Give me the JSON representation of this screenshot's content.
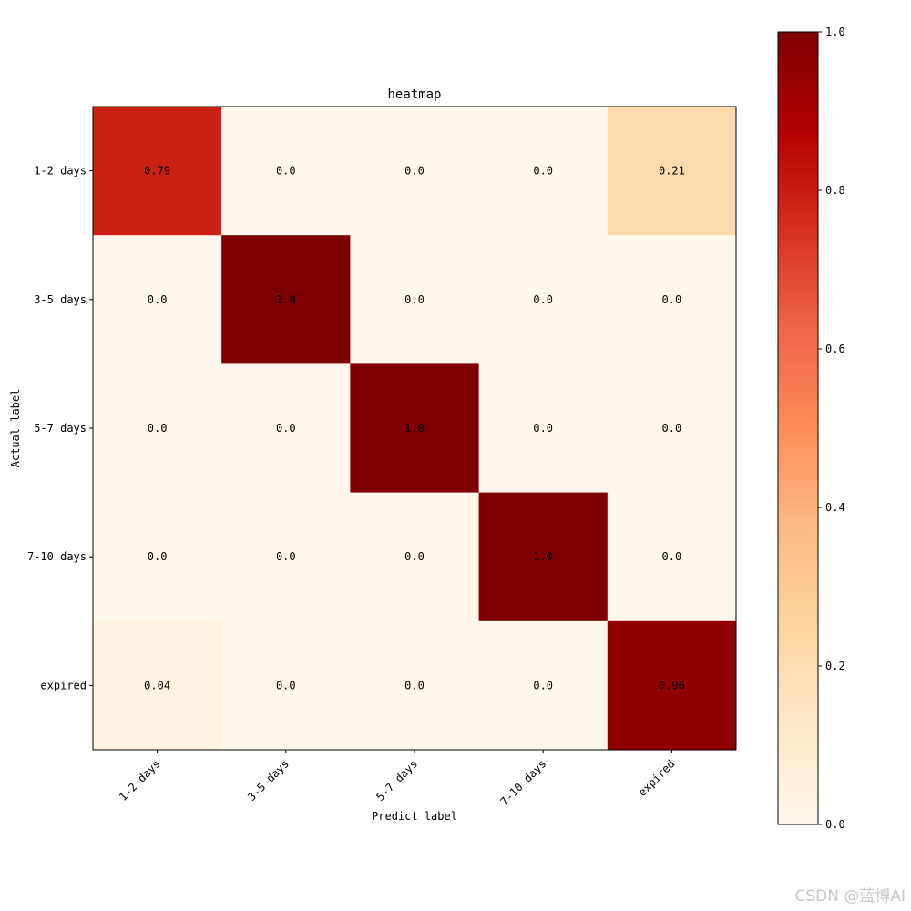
{
  "chart_data": {
    "type": "heatmap",
    "title": "heatmap",
    "xlabel": "Predict label",
    "ylabel": "Actual label",
    "x_categories": [
      "1-2 days",
      "3-5 days",
      "5-7 days",
      "7-10 days",
      "expired"
    ],
    "y_categories": [
      "1-2 days",
      "3-5 days",
      "5-7 days",
      "7-10 days",
      "expired"
    ],
    "values": [
      [
        0.79,
        0.0,
        0.0,
        0.0,
        0.21
      ],
      [
        0.0,
        1.0,
        0.0,
        0.0,
        0.0
      ],
      [
        0.0,
        0.0,
        1.0,
        0.0,
        0.0
      ],
      [
        0.0,
        0.0,
        0.0,
        1.0,
        0.0
      ],
      [
        0.04,
        0.0,
        0.0,
        0.0,
        0.96
      ]
    ],
    "cell_labels": [
      [
        "0.79",
        "0.0",
        "0.0",
        "0.0",
        "0.21"
      ],
      [
        "0.0",
        "1.0",
        "0.0",
        "0.0",
        "0.0"
      ],
      [
        "0.0",
        "0.0",
        "1.0",
        "0.0",
        "0.0"
      ],
      [
        "0.0",
        "0.0",
        "0.0",
        "1.0",
        "0.0"
      ],
      [
        "0.04",
        "0.0",
        "0.0",
        "0.0",
        "0.96"
      ]
    ],
    "colormap": "OrRd",
    "colorbar": {
      "range": [
        0.0,
        1.0
      ],
      "ticks": [
        0.0,
        0.2,
        0.4,
        0.6,
        0.8,
        1.0
      ],
      "tick_labels": [
        "0.0",
        "0.2",
        "0.4",
        "0.6",
        "0.8",
        "1.0"
      ]
    },
    "grid": false
  },
  "colors": {
    "colormap_stops": [
      "#fff7ec",
      "#fee8c8",
      "#fdd49e",
      "#fdbb84",
      "#fc8d59",
      "#ef6548",
      "#d7301f",
      "#b30000",
      "#7f0000"
    ]
  },
  "watermark": "CSDN @蓝博AI"
}
